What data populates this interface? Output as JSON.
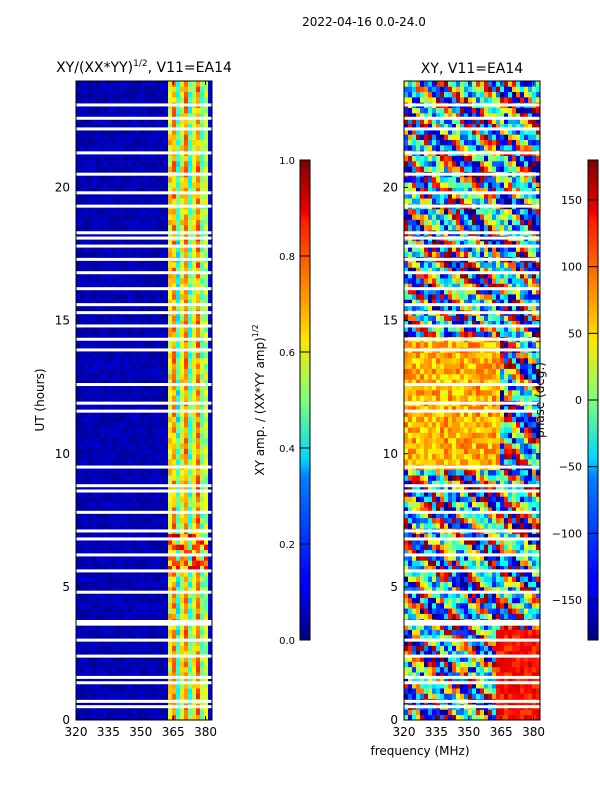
{
  "suptitle": "2022-04-16 0.0-24.0",
  "shared_xlabel": "frequency (MHz)",
  "chart_data": [
    {
      "type": "heatmap",
      "title_main": "XY/(XX*YY)",
      "title_sup": "1/2",
      "title_tail": ", V11=EA14",
      "ylabel": "UT (hours)",
      "xlim": [
        320,
        383
      ],
      "ylim": [
        0,
        24
      ],
      "xticks": [
        320,
        335,
        350,
        365,
        380
      ],
      "yticks": [
        0,
        5,
        10,
        15,
        20
      ],
      "colorbar": {
        "label_main": "XY amp. / (XX*YY amp)",
        "label_sup": "1/2",
        "range": [
          0.0,
          1.0
        ],
        "ticks": [
          "0.0",
          "0.2",
          "0.4",
          "0.6",
          "0.8",
          "1.0"
        ]
      },
      "blanked_hours": [
        23.1,
        22.6,
        22.2,
        21.3,
        20.5,
        19.8,
        19.3,
        18.3,
        18.1,
        17.8,
        17.3,
        16.8,
        16.2,
        15.6,
        15.3,
        14.8,
        14.3,
        13.9,
        12.6,
        11.9,
        11.6,
        9.5,
        8.8,
        8.6,
        7.8,
        7.1,
        6.8,
        6.2,
        5.6,
        4.8,
        3.7,
        3.6,
        3.0,
        2.4,
        1.6,
        1.4,
        0.7,
        0.5
      ]
    },
    {
      "type": "heatmap",
      "title_main": "XY, V11=EA14",
      "xlim": [
        320,
        383
      ],
      "ylim": [
        0,
        24
      ],
      "xticks": [
        320,
        335,
        350,
        365,
        380
      ],
      "yticks": [
        0,
        5,
        10,
        15,
        20
      ],
      "colorbar": {
        "label_main": "phase (deg.)",
        "range": [
          -180,
          180
        ],
        "ticks": [
          "150",
          "100",
          "50",
          "0",
          "−50",
          "−100",
          "−150"
        ]
      },
      "blanked_hours": [
        23.1,
        22.6,
        22.2,
        21.3,
        20.5,
        19.8,
        19.3,
        18.3,
        18.1,
        17.8,
        17.3,
        16.8,
        16.2,
        15.6,
        15.3,
        14.8,
        14.3,
        13.9,
        12.6,
        11.9,
        11.6,
        9.5,
        8.8,
        8.6,
        7.8,
        7.1,
        6.8,
        6.2,
        5.6,
        4.8,
        3.7,
        3.6,
        3.0,
        2.4,
        1.6,
        1.4,
        0.7,
        0.5
      ]
    }
  ]
}
